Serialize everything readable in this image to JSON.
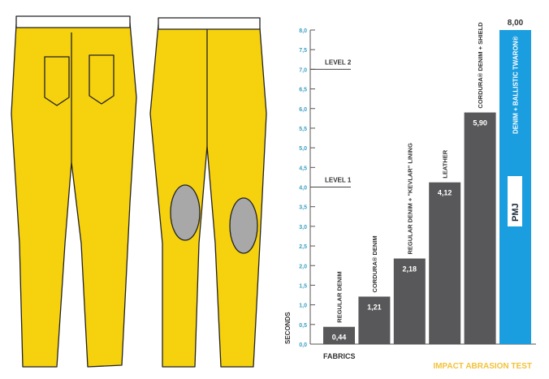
{
  "chart_data": {
    "type": "bar",
    "title": "IMPACT ABRASION TEST",
    "xlabel": "FABRICS",
    "ylabel": "SECONDS",
    "ylim": [
      0,
      8
    ],
    "yticks": [
      "0,0",
      "0,5",
      "1,0",
      "1,5",
      "2,0",
      "2,5",
      "3,0",
      "3,5",
      "4,0",
      "4,5",
      "5,0",
      "5,5",
      "6,0",
      "6,5",
      "7,0",
      "7,5",
      "8,0"
    ],
    "categories": [
      "REGULAR DENIM",
      "CORDURA® DENIM",
      "REGULAR DENIM + \"KEVLAR\" LINING",
      "LEATHER",
      "CORDURA® DENIM + SHIELD",
      "DENIM + BALLISTIC TWARON®"
    ],
    "values": [
      0.44,
      1.21,
      2.18,
      4.12,
      5.9,
      8.0
    ],
    "value_labels": [
      "0,44",
      "1,21",
      "2,18",
      "4,12",
      "5,90",
      "8,00"
    ],
    "reference_lines": [
      {
        "label": "LEVEL 1",
        "value": 4.0
      },
      {
        "label": "LEVEL 2",
        "value": 7.0
      }
    ],
    "highlight_logo": "PMJ",
    "colors": {
      "bar": "#58585a",
      "highlight": "#1b9ee0",
      "axis_ticks": "#3a9fc4",
      "title": "#f2c23a",
      "pants": "#f6d10e"
    }
  }
}
